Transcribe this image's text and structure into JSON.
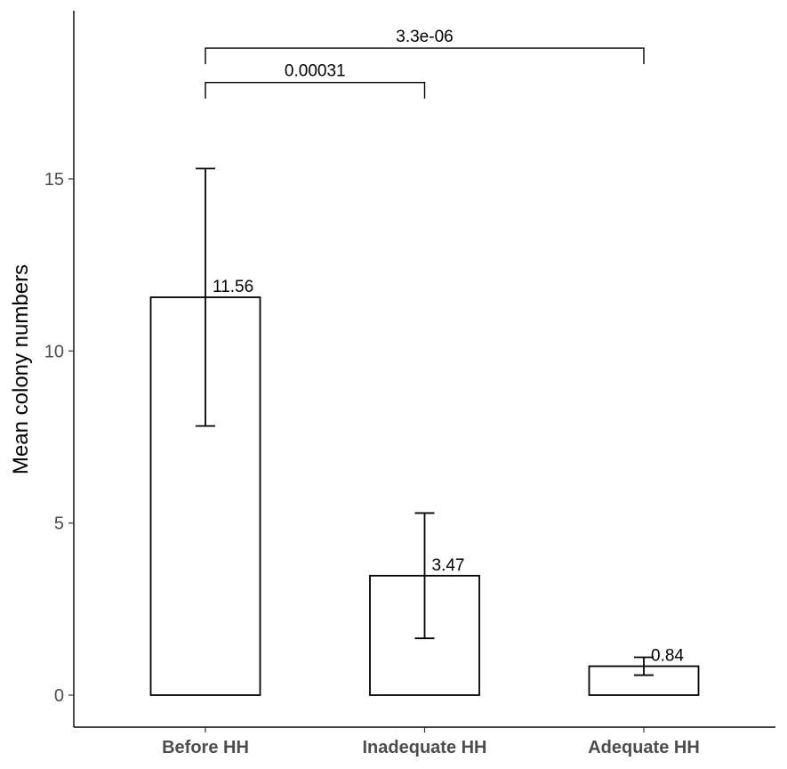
{
  "chart_data": {
    "type": "bar",
    "title": "",
    "xlabel": "",
    "ylabel": "Mean colony numbers",
    "categories": [
      "Before HH",
      "Inadequate HH",
      "Adequate HH"
    ],
    "values": [
      11.56,
      3.47,
      0.84
    ],
    "value_labels": [
      "11.56",
      "3.47",
      "0.84"
    ],
    "error_bars": [
      {
        "low": 7.82,
        "high": 15.3
      },
      {
        "low": 1.65,
        "high": 5.29
      },
      {
        "low": 0.58,
        "high": 1.1
      }
    ],
    "ylim": [
      -0.9,
      19.8
    ],
    "yticks": [
      0,
      5,
      10,
      15
    ],
    "ytick_labels": [
      "0",
      "5",
      "10",
      "15"
    ],
    "grid": false,
    "significance": [
      {
        "from": 0,
        "to": 1,
        "label": "0.00031",
        "y": 17.8
      },
      {
        "from": 0,
        "to": 2,
        "label": "3.3e-06",
        "y": 18.8
      }
    ]
  }
}
